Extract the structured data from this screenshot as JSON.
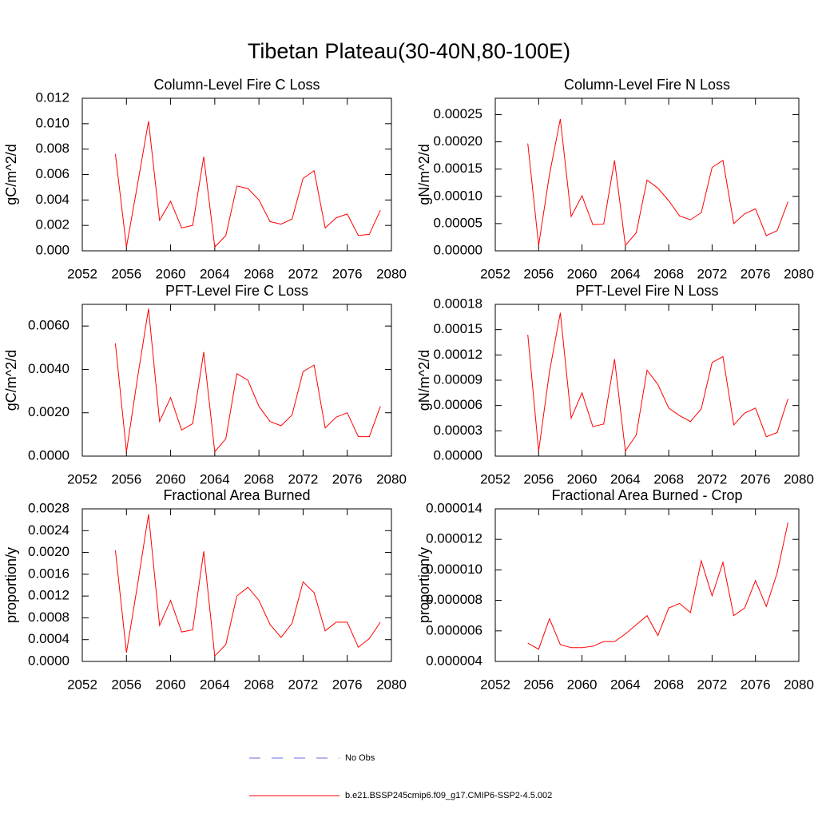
{
  "title": "Tibetan Plateau(30-40N,80-100E)",
  "legend": [
    {
      "name": "No Obs",
      "color": "#6a6adf",
      "dash": true
    },
    {
      "name": "b.e21.BSSP245cmip6.f09_g17.CMIP6-SSP2-4.5.002",
      "color": "#ff0000",
      "dash": false
    }
  ],
  "chart_data": [
    {
      "type": "line",
      "title": "Column-Level Fire C Loss",
      "y_label": "gC/m^2/d",
      "color": "#ff0000",
      "x": [
        2055,
        2056,
        2057,
        2058,
        2059,
        2060,
        2061,
        2062,
        2063,
        2064,
        2065,
        2066,
        2067,
        2068,
        2069,
        2070,
        2071,
        2072,
        2073,
        2074,
        2075,
        2076,
        2077,
        2078,
        2079
      ],
      "values": [
        0.0076,
        0.0003,
        0.0052,
        0.0102,
        0.0024,
        0.0039,
        0.0018,
        0.002,
        0.0074,
        0.0003,
        0.0012,
        0.0051,
        0.0049,
        0.004,
        0.0023,
        0.0021,
        0.0025,
        0.0057,
        0.0063,
        0.0018,
        0.0026,
        0.0029,
        0.0012,
        0.0013,
        0.0032
      ],
      "xlim": [
        2052,
        2080
      ],
      "xticks": [
        2052,
        2056,
        2060,
        2064,
        2068,
        2072,
        2076,
        2080
      ],
      "ylim": [
        0,
        0.012
      ],
      "yticks": [
        {
          "value": 0,
          "label": "0.000"
        },
        0.002,
        0.004,
        0.006,
        0.008,
        {
          "value": 0.01,
          "label": "0.010"
        },
        0.012
      ]
    },
    {
      "type": "line",
      "title": "Column-Level Fire N Loss",
      "y_label": "gN/m^2/d",
      "color": "#ff0000",
      "x": [
        2055,
        2056,
        2057,
        2058,
        2059,
        2060,
        2061,
        2062,
        2063,
        2064,
        2065,
        2066,
        2067,
        2068,
        2069,
        2070,
        2071,
        2072,
        2073,
        2074,
        2075,
        2076,
        2077,
        2078,
        2079
      ],
      "values": [
        0.000197,
        1e-05,
        0.00014,
        0.000242,
        6.3e-05,
        0.000101,
        4.8e-05,
        4.9e-05,
        0.000166,
        1e-05,
        3.3e-05,
        0.00013,
        0.000115,
        9.2e-05,
        6.4e-05,
        5.7e-05,
        7e-05,
        0.000153,
        0.000166,
        5e-05,
        6.8e-05,
        7.7e-05,
        2.8e-05,
        3.7e-05,
        9e-05
      ],
      "xlim": [
        2052,
        2080
      ],
      "xticks": [
        2052,
        2056,
        2060,
        2064,
        2068,
        2072,
        2076,
        2080
      ],
      "ylim": [
        0,
        0.00028
      ],
      "yticks": [
        {
          "value": 0,
          "label": "0.00000"
        },
        5e-05,
        {
          "value": 0.0001,
          "label": "0.00010"
        },
        0.00015,
        {
          "value": 0.0002,
          "label": "0.00020"
        },
        0.00025
      ]
    },
    {
      "type": "line",
      "title": "PFT-Level Fire C Loss",
      "y_label": "gC/m^2/d",
      "color": "#ff0000",
      "x": [
        2055,
        2056,
        2057,
        2058,
        2059,
        2060,
        2061,
        2062,
        2063,
        2064,
        2065,
        2066,
        2067,
        2068,
        2069,
        2070,
        2071,
        2072,
        2073,
        2074,
        2075,
        2076,
        2077,
        2078,
        2079
      ],
      "values": [
        0.0052,
        0.0002,
        0.0036,
        0.0068,
        0.0016,
        0.0027,
        0.0012,
        0.0015,
        0.0048,
        0.0002,
        0.0008,
        0.0038,
        0.0035,
        0.0023,
        0.0016,
        0.0014,
        0.0019,
        0.0039,
        0.0042,
        0.0013,
        0.0018,
        0.002,
        0.0009,
        0.0009,
        0.0023
      ],
      "xlim": [
        2052,
        2080
      ],
      "xticks": [
        2052,
        2056,
        2060,
        2064,
        2068,
        2072,
        2076,
        2080
      ],
      "ylim": [
        0,
        0.007
      ],
      "yticks": [
        {
          "value": 0,
          "label": "0.0000"
        },
        {
          "value": 0.002,
          "label": "0.0020"
        },
        {
          "value": 0.004,
          "label": "0.0040"
        },
        {
          "value": 0.006,
          "label": "0.0060"
        }
      ]
    },
    {
      "type": "line",
      "title": "PFT-Level Fire N Loss",
      "y_label": "gN/m^2/d",
      "color": "#ff0000",
      "x": [
        2055,
        2056,
        2057,
        2058,
        2059,
        2060,
        2061,
        2062,
        2063,
        2064,
        2065,
        2066,
        2067,
        2068,
        2069,
        2070,
        2071,
        2072,
        2073,
        2074,
        2075,
        2076,
        2077,
        2078,
        2079
      ],
      "values": [
        0.000144,
        6e-06,
        0.0001,
        0.00017,
        4.5e-05,
        7.5e-05,
        3.5e-05,
        3.8e-05,
        0.000115,
        6e-06,
        2.5e-05,
        0.000102,
        8.5e-05,
        5.7e-05,
        4.8e-05,
        4.1e-05,
        5.6e-05,
        0.000111,
        0.000118,
        3.7e-05,
        5.1e-05,
        5.7e-05,
        2.3e-05,
        2.8e-05,
        6.8e-05
      ],
      "xlim": [
        2052,
        2080
      ],
      "xticks": [
        2052,
        2056,
        2060,
        2064,
        2068,
        2072,
        2076,
        2080
      ],
      "ylim": [
        0,
        0.00018
      ],
      "yticks": [
        {
          "value": 0,
          "label": "0.00000"
        },
        3e-05,
        6e-05,
        9e-05,
        0.00012,
        0.00015,
        0.00018
      ]
    },
    {
      "type": "line",
      "title": "Fractional Area Burned",
      "y_label": "proportion/y",
      "color": "#ff0000",
      "x": [
        2055,
        2056,
        2057,
        2058,
        2059,
        2060,
        2061,
        2062,
        2063,
        2064,
        2065,
        2066,
        2067,
        2068,
        2069,
        2070,
        2071,
        2072,
        2073,
        2074,
        2075,
        2076,
        2077,
        2078,
        2079
      ],
      "values": [
        0.00204,
        0.00016,
        0.0014,
        0.0027,
        0.00066,
        0.00112,
        0.00054,
        0.00058,
        0.00202,
        0.0001,
        0.00031,
        0.0012,
        0.00136,
        0.00112,
        0.00068,
        0.00044,
        0.0007,
        0.00146,
        0.00126,
        0.00056,
        0.00072,
        0.00072,
        0.00026,
        0.00042,
        0.00072
      ],
      "xlim": [
        2052,
        2080
      ],
      "xticks": [
        2052,
        2056,
        2060,
        2064,
        2068,
        2072,
        2076,
        2080
      ],
      "ylim": [
        0,
        0.0028
      ],
      "yticks": [
        {
          "value": 0,
          "label": "0.0000"
        },
        0.0004,
        0.0008,
        0.0012,
        0.0016,
        {
          "value": 0.002,
          "label": "0.0020"
        },
        0.0024,
        0.0028
      ]
    },
    {
      "type": "line",
      "title": "Fractional Area Burned - Crop",
      "y_label": "proportion/y",
      "color": "#ff0000",
      "x": [
        2055,
        2056,
        2057,
        2058,
        2059,
        2060,
        2061,
        2062,
        2063,
        2064,
        2065,
        2066,
        2067,
        2068,
        2069,
        2070,
        2071,
        2072,
        2073,
        2074,
        2075,
        2076,
        2077,
        2078,
        2079
      ],
      "values": [
        5.2e-06,
        4.8e-06,
        6.8e-06,
        5.1e-06,
        4.9e-06,
        4.9e-06,
        5e-06,
        5.3e-06,
        5.3e-06,
        5.8e-06,
        6.4e-06,
        7e-06,
        5.7e-06,
        7.5e-06,
        7.8e-06,
        7.2e-06,
        1.06e-05,
        8.3e-06,
        1.05e-05,
        7e-06,
        7.5e-06,
        9.3e-06,
        7.6e-06,
        9.8e-06,
        1.31e-05
      ],
      "xlim": [
        2052,
        2080
      ],
      "xticks": [
        2052,
        2056,
        2060,
        2064,
        2068,
        2072,
        2076,
        2080
      ],
      "ylim": [
        4e-06,
        1.4e-05
      ],
      "yticks": [
        4e-06,
        6e-06,
        8e-06,
        {
          "value": 1e-05,
          "label": "0.000010"
        },
        1.2e-05,
        1.4e-05
      ]
    }
  ]
}
